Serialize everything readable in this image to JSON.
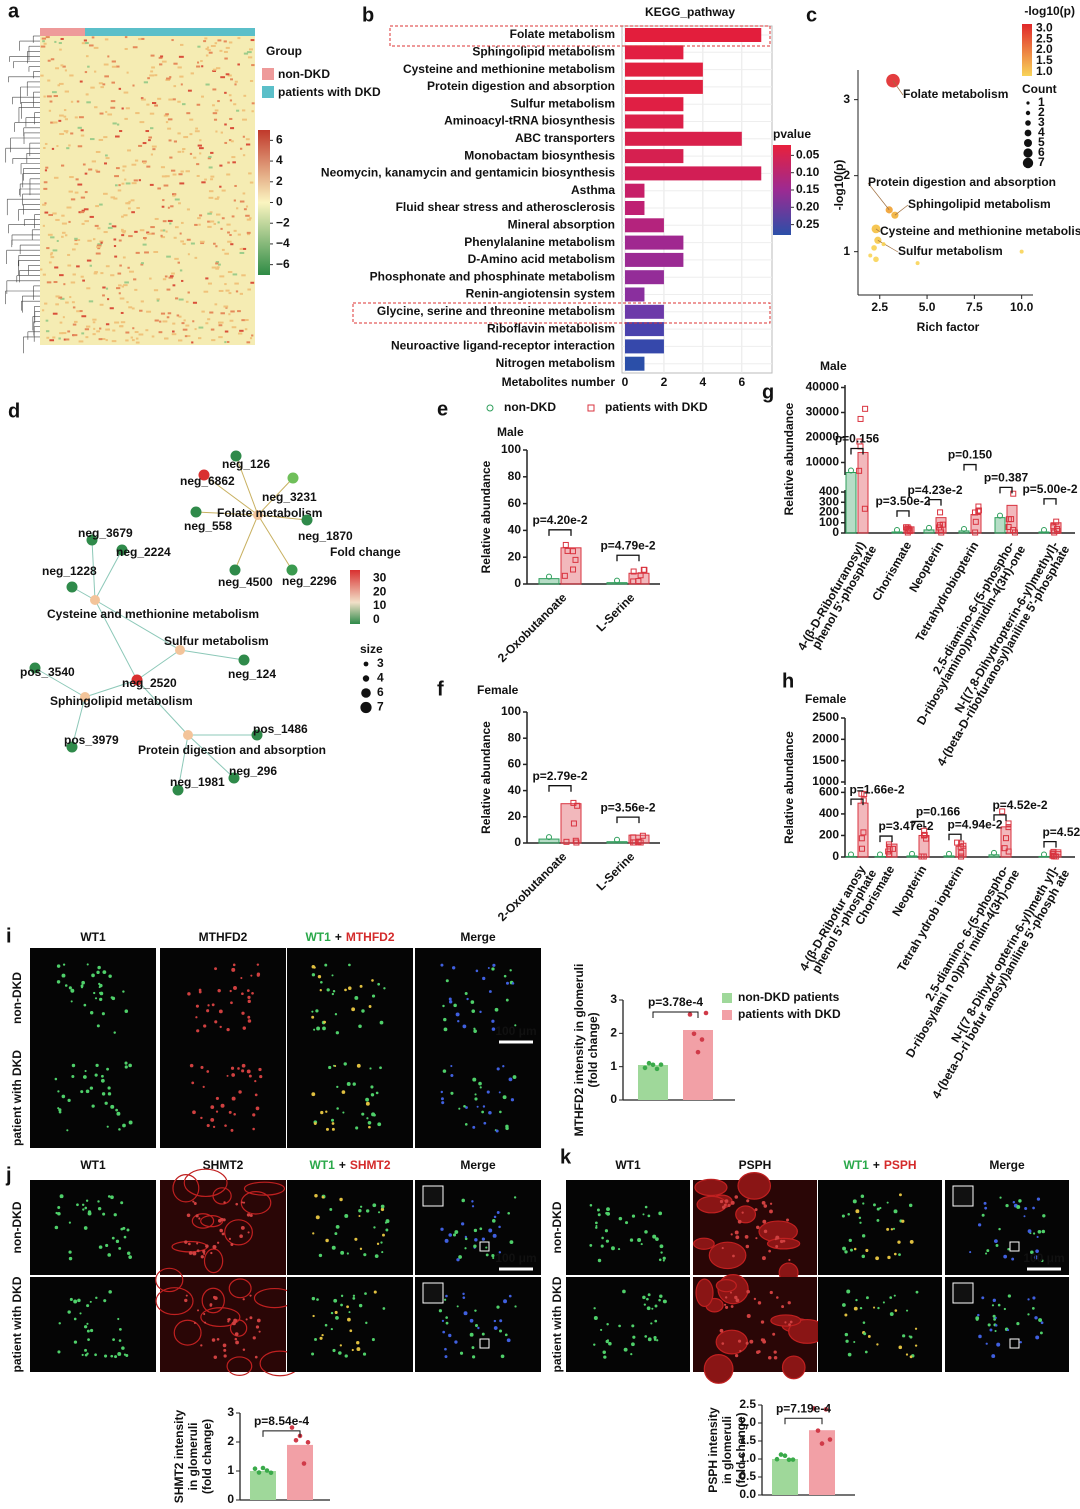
{
  "figure": {
    "a": {
      "letter": "a",
      "legend_title": "Group",
      "groups": [
        {
          "name": "non-DKD",
          "color": "#ee9a9a"
        },
        {
          "name": "patients with DKD",
          "color": "#5bbfc9"
        }
      ],
      "colorbar_lim": [
        -7,
        7
      ],
      "colorbar_ticks": [
        6,
        4,
        2,
        0,
        {
          "value": -2,
          "label": "−2"
        },
        {
          "value": -4,
          "label": "−4"
        },
        {
          "value": -6,
          "label": "−6"
        }
      ]
    },
    "b": {
      "letter": "b",
      "title": "KEGG_pathway",
      "x_label": "Metabolites number",
      "categories": [
        "Folate metabolism",
        "Sphingolipid metabolism",
        "Cysteine and methionine metabolism",
        "Protein digestion and absorption",
        "Sulfur metabolism",
        "Aminoacyl-tRNA biosynthesis",
        "ABC transporters",
        "Monobactam biosynthesis",
        "Neomycin, kanamycin and gentamicin biosynthesis",
        "Asthma",
        "Fluid shear stress and atherosclerosis",
        "Mineral absorption",
        "Phenylalanine metabolism",
        "D-Amino acid metabolism",
        "Phosphonate and phosphinate metabolism",
        "Renin-angiotensin system",
        "Glycine, serine and threonine metabolism",
        "Riboflavin metabolism",
        "Neuroactive ligand-receptor interaction",
        "Nitrogen metabolism"
      ],
      "values": [
        7,
        3,
        4,
        4,
        3,
        3,
        6,
        3,
        7,
        1,
        1,
        2,
        3,
        3,
        2,
        1,
        2,
        2,
        2,
        1
      ],
      "colors": [
        "#e31e3c",
        "#e21f42",
        "#e1203f",
        "#e0203f",
        "#e01f44",
        "#dc2049",
        "#d9204b",
        "#d62050",
        "#d21e55",
        "#c71f68",
        "#bf2173",
        "#b4237d",
        "#a02890",
        "#9b2a93",
        "#942c98",
        "#8a2f9e",
        "#6c39a9",
        "#4a42ad",
        "#3648ab",
        "#2b4fa8"
      ],
      "xlim": [
        0,
        7.5
      ],
      "xticks": [
        0,
        2,
        4,
        6
      ],
      "grid": true,
      "legend_title": "pvalue",
      "colorbar_lim": [
        0.02,
        0.28
      ],
      "colorbar_ticks": [
        0.05,
        {
          "value": 0.1,
          "label": "0.10"
        },
        0.15,
        {
          "value": 0.2,
          "label": "0.20"
        },
        0.25
      ]
    },
    "c": {
      "letter": "c",
      "x_label": "Rich factor",
      "y_label": "-log10(p)",
      "xlim": [
        1.35,
        10.6
      ],
      "ylim": [
        0.43,
        3.39
      ],
      "xticks": [
        2.5,
        {
          "value": 5,
          "label": "5.0"
        },
        7.5,
        {
          "value": 10,
          "label": "10.0"
        }
      ],
      "yticks": [
        1,
        2,
        3
      ],
      "points": [
        {
          "label": "Folate metabolism",
          "x": 3.2,
          "y": 3.25,
          "size": 7,
          "color": "#e0282a"
        },
        {
          "label": "Protein digestion and absorption",
          "x": 3.0,
          "y": 1.55,
          "size": 3,
          "color": "#f0a030"
        },
        {
          "label": "Sphingolipid metabolism",
          "x": 3.3,
          "y": 1.48,
          "size": 3,
          "color": "#f2b036"
        },
        {
          "label": "Cysteine and methionine metabolism",
          "x": 2.3,
          "y": 1.3,
          "size": 4,
          "color": "#f5c040"
        },
        {
          "label": "Sulfur metabolism",
          "x": 2.4,
          "y": 1.15,
          "size": 3,
          "color": "#f6c848"
        },
        {
          "label": null,
          "x": 2.2,
          "y": 1.05,
          "size": 2,
          "color": "#f8d050"
        },
        {
          "label": null,
          "x": 2.3,
          "y": 0.9,
          "size": 2,
          "color": "#f8d458"
        },
        {
          "label": null,
          "x": 2.0,
          "y": 0.95,
          "size": 1,
          "color": "#f8d458"
        },
        {
          "label": null,
          "x": 2.7,
          "y": 1.1,
          "size": 1,
          "color": "#f8d050"
        },
        {
          "label": null,
          "x": 10.0,
          "y": 1.0,
          "size": 1,
          "color": "#f8d458"
        },
        {
          "label": null,
          "x": 4.5,
          "y": 0.85,
          "size": 1,
          "color": "#f8d458"
        }
      ],
      "color_title": "-log10(p)",
      "color_lim": [
        0.8,
        3.2
      ],
      "color_ticks": [
        {
          "value": 3,
          "label": "3.0"
        },
        2.5,
        {
          "value": 2,
          "label": "2.0"
        },
        1.5,
        {
          "value": 1,
          "label": "1.0"
        }
      ],
      "size_title": "Count",
      "size_ticks": [
        1,
        2,
        3,
        4,
        5,
        6,
        7
      ]
    },
    "d": {
      "letter": "d",
      "nodes": [
        {
          "label": "Folate metabolism",
          "color": "#f3c49a"
        },
        {
          "label": "neg_6862",
          "color": "#d93030"
        },
        {
          "label": "neg_126",
          "color": "#2f8a4a"
        },
        {
          "label": "neg_3231",
          "color": "#6fbf5a"
        },
        {
          "label": "neg_558",
          "color": "#2f8a4a"
        },
        {
          "label": "neg_1870",
          "color": "#2f8a4a"
        },
        {
          "label": "neg_4500",
          "color": "#2f8a4a"
        },
        {
          "label": "neg_2296",
          "color": "#3a9a4f"
        },
        {
          "label": "neg_3679",
          "color": "#2f8a4a"
        },
        {
          "label": "neg_1228",
          "color": "#2f8a4a"
        },
        {
          "label": "neg_2224",
          "color": "#2f8a4a"
        },
        {
          "label": "Cysteine and methionine metabolism",
          "color": "#f3c49a"
        },
        {
          "label": "Sulfur metabolism",
          "color": "#f3c49a"
        },
        {
          "label": "neg_124",
          "color": "#2f8a4a"
        },
        {
          "label": "neg_2520",
          "color": "#d93030"
        },
        {
          "label": "pos_3540",
          "color": "#2f8a4a"
        },
        {
          "label": "Sphingolipid metabolism",
          "color": "#f3c49a"
        },
        {
          "label": "pos_3979",
          "color": "#2f8a4a"
        },
        {
          "label": "pos_1486",
          "color": "#2f8a4a"
        },
        {
          "label": "Protein digestion and absorption",
          "color": "#f3c49a"
        },
        {
          "label": "neg_296",
          "color": "#2f8a4a"
        },
        {
          "label": "neg_1981",
          "color": "#2f8a4a"
        }
      ],
      "color_title": "Fold change",
      "color_lim": [
        -3,
        36
      ],
      "color_ticks": [
        30,
        20,
        10,
        0
      ],
      "size_title": "size",
      "size_ticks": [
        3,
        4,
        6,
        7
      ]
    },
    "e": {
      "letter": "e",
      "title": "Male",
      "y_label": "Relative abundance",
      "categories": [
        "2-Oxobutanoate",
        "L-Serine"
      ],
      "series": [
        {
          "name": "non-DKD",
          "color": "#2e9e5b",
          "values": [
            4,
            1
          ]
        },
        {
          "name": "patients with DKD",
          "color": "#d9333f",
          "values": [
            27,
            8
          ]
        }
      ],
      "p_labels": [
        "p=4.20e-2",
        "p=4.79e-2"
      ],
      "ylim": [
        0,
        100
      ],
      "yticks": [
        0,
        20,
        40,
        60,
        80,
        100
      ]
    },
    "f": {
      "letter": "f",
      "title": "Female",
      "y_label": "Relative abundance",
      "categories": [
        "2-Oxobutanoate",
        "L-Serine"
      ],
      "series": [
        {
          "color": "#2e9e5b",
          "values": [
            3,
            1
          ]
        },
        {
          "color": "#d9333f",
          "values": [
            30,
            6
          ]
        }
      ],
      "p_labels": [
        "p=2.79e-2",
        "p=3.56e-2"
      ],
      "ylim": [
        0,
        100
      ],
      "yticks": [
        0,
        20,
        40,
        60,
        80,
        100
      ]
    },
    "g": {
      "letter": "g",
      "title": "Male",
      "y_label": "Relative abundance",
      "categories": [
        [
          "4-(β-D-Ribofuranosyl)",
          "phenol 5'-phosphate"
        ],
        [
          "Chorismate"
        ],
        [
          "Neopterin"
        ],
        [
          "Tetrahydrobiopterin"
        ],
        [
          "2,5-diamino-6-(5-phospho-",
          "D-ribosylamino)pyrimidin-4(3H)-one"
        ],
        [
          "N-[(7,8-Dihydropterin-6-yl)methyl]-",
          "4-(beta-D-ribofuranosyl)aniline 5'-phosphate"
        ]
      ],
      "series": [
        {
          "color": "#2e9e5b",
          "values": [
            6000,
            10,
            30,
            20,
            150,
            10
          ]
        },
        {
          "color": "#d9333f",
          "values": [
            14000,
            60,
            150,
            180,
            270,
            100
          ]
        }
      ],
      "p_labels": [
        "p=0.156",
        "p=3.50e-2",
        "p=4.23e-2",
        "p=0.150",
        "p=0.387",
        "p=5.00e-2"
      ],
      "ylim_lower": [
        0,
        420
      ],
      "yticks_lower": [
        0,
        100,
        200,
        300,
        400
      ],
      "ylim_upper": [
        5000,
        41000
      ],
      "yticks_upper": [
        10000,
        20000,
        30000,
        40000
      ]
    },
    "h": {
      "letter": "h",
      "title": "Female",
      "y_label": "Relative abundance",
      "categories": [
        [
          "4-(β-D-Ribofur anosy",
          "phenol 5'-phosphate"
        ],
        [
          "Chorismate"
        ],
        [
          "Neopterin"
        ],
        [
          "Tetrah ydrob iopterin"
        ],
        [
          "2,5-diamino- 6-(5-phospho-",
          "D-ribosylami n o)pyri midin-4(3H)-one"
        ],
        [
          "N-[(7 8-Dihydr opterin-6-yl)meth yl]-",
          "4-(beta-D-ri bofur anosyl)aniline 5'-phosph ate"
        ]
      ],
      "series": [
        {
          "color": "#2e9e5b",
          "values": [
            5,
            5,
            10,
            10,
            20,
            5
          ]
        },
        {
          "color": "#d9333f",
          "values": [
            500,
            120,
            200,
            100,
            280,
            50
          ]
        }
      ],
      "p_labels": [
        "p=1.66e-2",
        "p=3.47e-2",
        "p=0.166",
        "p=4.94e-2",
        "p=4.52e-2",
        "p=4.52e-2"
      ],
      "ylim_lower": [
        0,
        650
      ],
      "yticks_lower": [
        0,
        200,
        400,
        600
      ],
      "ylim_upper": [
        930,
        2500
      ],
      "yticks_upper": [
        1000,
        1500,
        2000,
        2500
      ]
    },
    "i": {
      "letter": "i",
      "headers": [
        "WT1",
        "MTHFD2",
        [
          "WT1",
          "+",
          "MTHFD2"
        ],
        "Merge"
      ],
      "rows": [
        "non-DKD",
        "patient with DKD"
      ],
      "scale": "100 μm",
      "y_label": [
        "MTHFD2 intensity in glomeruli",
        "(fold change)"
      ],
      "categories": [
        "non-DKD patients",
        "patients with DKD"
      ],
      "colors": [
        "#9fd89a",
        "#f2a0a6"
      ],
      "values": [
        1.05,
        2.1
      ],
      "p_label": "p=3.78e-4",
      "ylim": [
        0,
        3
      ],
      "yticks": [
        0,
        1,
        2,
        3
      ]
    },
    "j": {
      "letter": "j",
      "headers": [
        "WT1",
        "SHMT2",
        [
          "WT1",
          "+",
          "SHMT2"
        ],
        "Merge"
      ],
      "rows": [
        "non-DKD",
        "patient with DKD"
      ],
      "scale": "100 μm",
      "y_label": [
        "SHMT2 intensity",
        "in glomeruli",
        "(fold change)"
      ],
      "colors": [
        "#9fd89a",
        "#f2a0a6"
      ],
      "values": [
        1.0,
        1.9
      ],
      "p_label": "p=8.54e-4",
      "ylim": [
        0,
        3
      ],
      "yticks": [
        0,
        1,
        2,
        3
      ]
    },
    "k": {
      "letter": "k",
      "headers": [
        "WT1",
        "PSPH",
        [
          "WT1",
          "+",
          "PSPH"
        ],
        "Merge"
      ],
      "rows": [
        "non-DKD",
        "patient with DKD"
      ],
      "scale": "100 μm",
      "y_label": [
        "PSPH intensity",
        "in glomeruli",
        "(fold change)"
      ],
      "colors": [
        "#9fd89a",
        "#f2a0a6"
      ],
      "values": [
        1.0,
        1.8
      ],
      "p_label": "p=7.19e-4",
      "ylim": [
        0,
        2.5
      ],
      "yticks": [
        {
          "value": 0,
          "label": "0.0"
        },
        0.5,
        {
          "value": 1,
          "label": "1.0"
        },
        1.5,
        {
          "value": 2,
          "label": "2.0"
        },
        2.5
      ]
    }
  }
}
